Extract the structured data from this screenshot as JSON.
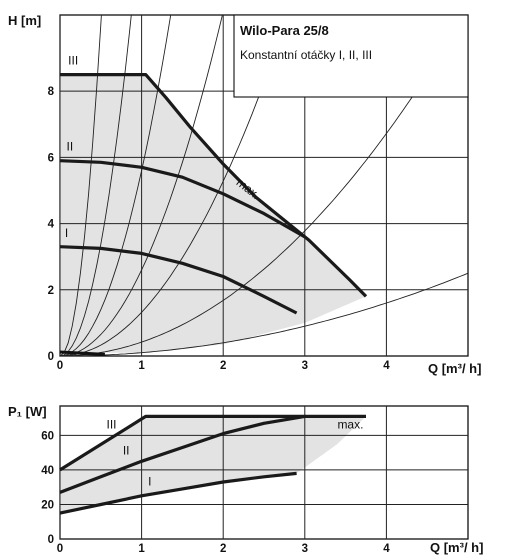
{
  "chart_data": [
    {
      "type": "line",
      "title_box": {
        "title": "Wilo-Para  25/8",
        "subtitle": "Konstantní otáčky I, II, III"
      },
      "xlabel": "Q [m³/ h]",
      "ylabel": "H [m]",
      "xlim": [
        0,
        5
      ],
      "ylim": [
        0,
        10.3
      ],
      "xticks": [
        "0",
        "1",
        "2",
        "3",
        "4"
      ],
      "yticks": [
        "0",
        "2",
        "4",
        "6",
        "8"
      ],
      "grid": true,
      "series": [
        {
          "name": "III",
          "x": [
            0,
            1.05,
            1.3,
            1.6,
            2.0,
            2.4,
            2.8,
            3.05,
            3.3,
            3.55,
            3.75
          ],
          "y": [
            8.5,
            8.5,
            7.8,
            6.9,
            5.8,
            4.8,
            4.0,
            3.5,
            2.9,
            2.3,
            1.8
          ]
        },
        {
          "name": "II",
          "x": [
            0,
            0.5,
            1.0,
            1.5,
            2.0,
            2.5,
            3.0
          ],
          "y": [
            5.9,
            5.85,
            5.7,
            5.4,
            4.9,
            4.3,
            3.6
          ]
        },
        {
          "name": "I",
          "x": [
            0,
            0.5,
            1.0,
            1.5,
            2.0,
            2.5,
            2.9
          ],
          "y": [
            3.3,
            3.25,
            3.1,
            2.8,
            2.4,
            1.8,
            1.3
          ]
        }
      ],
      "annotations": [
        {
          "text": "III",
          "x": 0.1,
          "y": 8.8
        },
        {
          "text": "II",
          "x": 0.08,
          "y": 6.2
        },
        {
          "text": "I",
          "x": 0.06,
          "y": 3.6
        },
        {
          "text": "max.",
          "x": 2.15,
          "y": 5.2
        }
      ]
    },
    {
      "type": "line",
      "xlabel": "Q [m³/ h]",
      "ylabel": "P₁ [W]",
      "xlim": [
        0,
        5
      ],
      "ylim": [
        0,
        77
      ],
      "xticks": [
        "0",
        "1",
        "2",
        "3",
        "4"
      ],
      "yticks": [
        "0",
        "20",
        "40",
        "60"
      ],
      "grid": true,
      "series": [
        {
          "name": "III",
          "x": [
            0,
            1.05,
            3.0,
            3.75
          ],
          "y": [
            40,
            71,
            71,
            71
          ]
        },
        {
          "name": "II",
          "x": [
            0,
            0.5,
            1.0,
            1.5,
            2.0,
            2.5,
            3.0
          ],
          "y": [
            27,
            36,
            45,
            53,
            61,
            67,
            71
          ]
        },
        {
          "name": "I",
          "x": [
            0,
            0.5,
            1.0,
            1.5,
            2.0,
            2.5,
            2.9
          ],
          "y": [
            15,
            20,
            25,
            29,
            33,
            36,
            38
          ]
        }
      ],
      "annotations": [
        {
          "text": "III",
          "x": 0.57,
          "y": 64
        },
        {
          "text": "II",
          "x": 0.77,
          "y": 49
        },
        {
          "text": "I",
          "x": 1.08,
          "y": 31
        },
        {
          "text": "max.",
          "x": 3.4,
          "y": 64
        }
      ]
    }
  ]
}
